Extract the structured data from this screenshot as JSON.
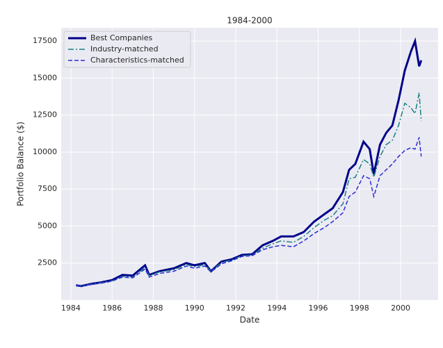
{
  "chart_data": {
    "type": "line",
    "title": "1984-2000",
    "xlabel": "Date",
    "ylabel": "Portfolio Balance ($)",
    "x": [
      1984.25,
      1984.5,
      1985,
      1985.5,
      1986,
      1986.5,
      1987,
      1987.6,
      1987.8,
      1988.3,
      1989,
      1989.6,
      1990,
      1990.5,
      1990.8,
      1991.3,
      1991.8,
      1992.3,
      1992.8,
      1993.3,
      1993.8,
      1994.2,
      1994.8,
      1995.3,
      1995.8,
      1996.3,
      1996.7,
      1997.2,
      1997.5,
      1997.8,
      1998.2,
      1998.5,
      1998.7,
      1999,
      1999.3,
      1999.6,
      1999.9,
      2000.2,
      2000.5,
      2000.7,
      2000.9,
      2001
    ],
    "series": [
      {
        "name": "Best Companies",
        "color": "#00008b",
        "linestyle": "solid",
        "linewidth": 3,
        "values": [
          1000,
          950,
          1100,
          1200,
          1350,
          1700,
          1650,
          2350,
          1700,
          1950,
          2150,
          2500,
          2350,
          2500,
          1950,
          2600,
          2750,
          3050,
          3100,
          3700,
          4000,
          4300,
          4300,
          4600,
          5300,
          5800,
          6200,
          7300,
          8800,
          9200,
          10700,
          10200,
          8500,
          10500,
          11300,
          11800,
          13500,
          15500,
          16800,
          17500,
          15800,
          16200
        ]
      },
      {
        "name": "Industry-matched",
        "color": "#1a8080",
        "linestyle": "dashdot",
        "linewidth": 1.5,
        "values": [
          1000,
          950,
          1080,
          1180,
          1300,
          1600,
          1550,
          2200,
          1650,
          1900,
          2050,
          2400,
          2250,
          2400,
          1950,
          2550,
          2700,
          3000,
          3050,
          3500,
          3800,
          4000,
          3900,
          4300,
          4900,
          5400,
          5700,
          6500,
          8200,
          8300,
          9500,
          9200,
          8300,
          9700,
          10500,
          10800,
          11800,
          13300,
          13000,
          12600,
          14000,
          12100
        ]
      },
      {
        "name": "Characteristics-matched",
        "color": "#2b2bd6",
        "linestyle": "dashed",
        "linewidth": 1.5,
        "values": [
          1000,
          940,
          1050,
          1150,
          1280,
          1550,
          1500,
          2100,
          1550,
          1800,
          1950,
          2300,
          2150,
          2300,
          1900,
          2450,
          2650,
          2950,
          3000,
          3400,
          3600,
          3700,
          3600,
          4000,
          4500,
          4900,
          5300,
          5900,
          7000,
          7300,
          8400,
          8200,
          7000,
          8400,
          8800,
          9200,
          9700,
          10100,
          10300,
          10200,
          11000,
          9700
        ]
      }
    ],
    "xlim": [
      1983.53,
      2001.82
    ],
    "ylim": [
      0,
      18400
    ],
    "xticks": [
      1984,
      1986,
      1988,
      1990,
      1992,
      1994,
      1996,
      1998,
      2000
    ],
    "yticks": [
      2500,
      5000,
      7500,
      10000,
      12500,
      15000,
      17500
    ],
    "grid": true,
    "legend": "upper left"
  }
}
